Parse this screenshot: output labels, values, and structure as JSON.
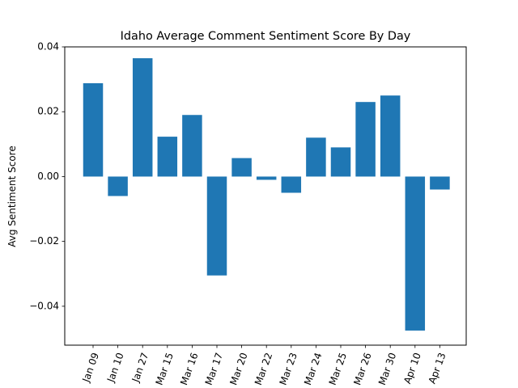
{
  "chart_data": {
    "type": "bar",
    "title": "Idaho Average Comment Sentiment Score By Day",
    "xlabel": "",
    "ylabel": "Avg Sentiment Score",
    "categories": [
      "Jan 09",
      "Jan 10",
      "Jan 27",
      "Mar 15",
      "Mar 16",
      "Mar 17",
      "Mar 20",
      "Mar 22",
      "Mar 23",
      "Mar 24",
      "Mar 25",
      "Mar 26",
      "Mar 30",
      "Apr 10",
      "Apr 13"
    ],
    "values": [
      0.0288,
      -0.006,
      0.0365,
      0.0123,
      0.019,
      -0.0305,
      0.0057,
      -0.001,
      -0.005,
      0.012,
      0.009,
      0.023,
      0.025,
      -0.0475,
      -0.004
    ],
    "ylim": [
      -0.052,
      0.04
    ],
    "yticks": [
      0.04,
      0.02,
      0.0,
      -0.02,
      -0.04
    ],
    "ytick_labels": [
      "0.04",
      "0.02",
      "0.00",
      "−0.02",
      "−0.04"
    ],
    "grid": false,
    "bar_color": "#1f77b4"
  }
}
